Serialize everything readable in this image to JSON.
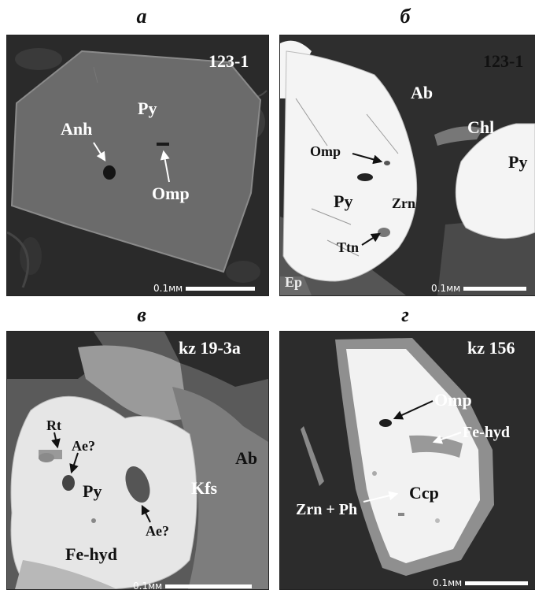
{
  "panels": {
    "a": {
      "letter": "а",
      "sample": "123-1",
      "scale": "0.1мм",
      "labels": {
        "py": "Py",
        "anh": "Anh",
        "omp": "Omp"
      }
    },
    "b": {
      "letter": "б",
      "sample": "123-1",
      "scale": "0.1мм",
      "labels": {
        "ab": "Ab",
        "chl": "Chl",
        "omp": "Omp",
        "py_left": "Py",
        "zrn": "Zrn",
        "py_right": "Py",
        "ttn": "Ttn",
        "ep": "Ep"
      }
    },
    "c": {
      "letter": "в",
      "sample": "kz 19-3a",
      "scale": "0.1мм",
      "labels": {
        "rt": "Rt",
        "ae1": "Ae?",
        "py": "Py",
        "kfs": "Kfs",
        "ab": "Ab",
        "ae2": "Ae?",
        "fehyd": "Fe-hyd"
      }
    },
    "d": {
      "letter": "г",
      "sample": "kz 156",
      "scale": "0.1мм",
      "labels": {
        "omp": "Omp",
        "fehyd": "Fe-hyd",
        "ccp": "Ccp",
        "zrnph": "Zrn + Ph"
      }
    }
  },
  "colors": {
    "a_background": "#2a2a2a",
    "a_grain": "#6b6b6b",
    "b_matrix": "#333333",
    "b_pyrite": "#f4f4f4",
    "c_pyrite": "#e6e6e6",
    "c_kfs": "#8a8a8a",
    "d_ccp": "#f2f2f2",
    "d_rim": "#8f8f8f"
  }
}
